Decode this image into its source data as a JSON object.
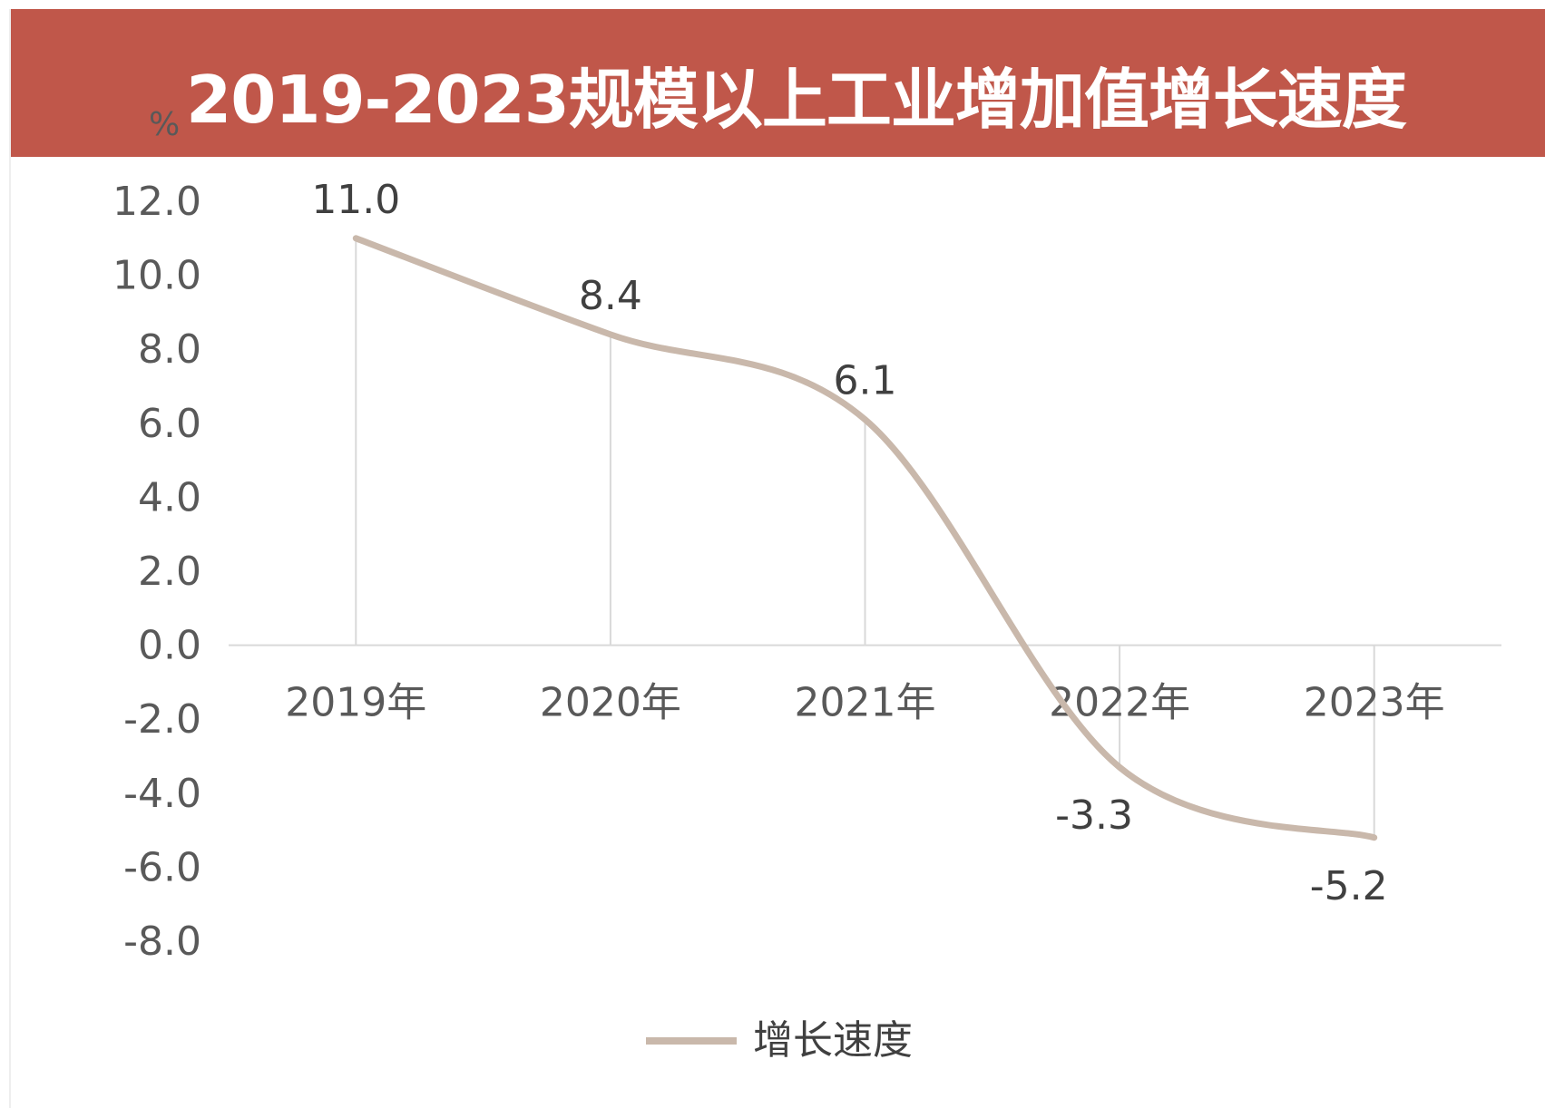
{
  "title": "2019-2023规模以上工业增加值增长速度",
  "unit_label": "%",
  "colors": {
    "banner": "#c0574a",
    "line": "#c9b8ab",
    "gridline": "#d9d9d9",
    "axis": "#d9d9d9",
    "tick_text": "#595959"
  },
  "chart_data": {
    "type": "line",
    "title": "2019-2023规模以上工业增加值增长速度",
    "ylabel": "%",
    "xlabel": "",
    "categories": [
      "2019年",
      "2020年",
      "2021年",
      "2022年",
      "2023年"
    ],
    "series": [
      {
        "name": "增长速度",
        "values": [
          11.0,
          8.4,
          6.1,
          -3.3,
          -5.2
        ],
        "smooth": true
      }
    ],
    "data_labels": [
      "11.0",
      "8.4",
      "6.1",
      "-3.3",
      "-5.2"
    ],
    "ylim": [
      -8.0,
      12.0
    ],
    "yticks": [
      "12.0",
      "10.0",
      "8.0",
      "6.0",
      "4.0",
      "2.0",
      "0.0",
      "-2.0",
      "-4.0",
      "-6.0",
      "-8.0"
    ],
    "vertical_gridlines": true,
    "legend": {
      "placement": "bottom",
      "entries": [
        "增长速度"
      ]
    }
  }
}
